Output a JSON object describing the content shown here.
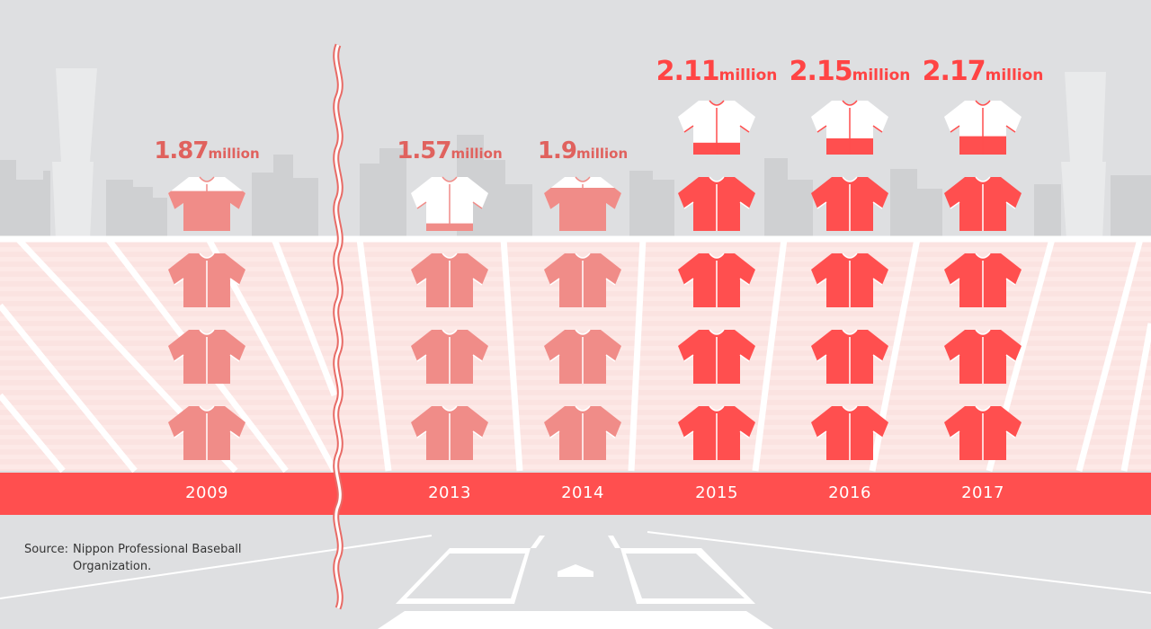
{
  "chart_data": {
    "type": "bar",
    "title": "",
    "xlabel": "",
    "ylabel": "",
    "unit": "million",
    "categories": [
      "2009",
      "2013",
      "2014",
      "2015",
      "2016",
      "2017"
    ],
    "values": [
      1.87,
      1.57,
      1.9,
      2.11,
      2.15,
      2.17
    ],
    "value_labels": [
      "1.87",
      "1.57",
      "1.9",
      "2.11",
      "2.15",
      "2.17"
    ],
    "axis_break_between": [
      "2009",
      "2013"
    ],
    "ylim": [
      0,
      2.5
    ],
    "grid": false,
    "legend": "none"
  },
  "colors": {
    "highlight": "#ff4f4f",
    "muted": "#f08c88",
    "highlight_label": "#ff4444",
    "muted_label": "#e0625e",
    "year_band": "#ff4f4f",
    "background": "#dedfe1"
  },
  "highlight_years": [
    "2015",
    "2016",
    "2017"
  ],
  "icon": "baseball-jersey-icon",
  "source": {
    "prefix": "Source:",
    "text": "Nippon Professional Baseball Organization."
  }
}
